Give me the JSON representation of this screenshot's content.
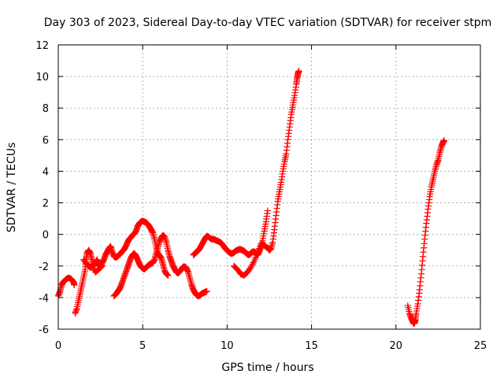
{
  "chart_data": {
    "type": "scatter",
    "title": "Day 303 of 2023, Sidereal Day-to-day VTEC variation (SDTVAR) for receiver stpm",
    "xlabel": "GPS time / hours",
    "ylabel": "SDTVAR / TECUs",
    "xlim": [
      0,
      25
    ],
    "ylim": [
      -6,
      12
    ],
    "xticks": [
      0,
      5,
      10,
      15,
      20,
      25
    ],
    "yticks": [
      -6,
      -4,
      -2,
      0,
      2,
      4,
      6,
      8,
      10,
      12
    ],
    "xtick_labels": [
      "0",
      "5",
      "10",
      "15",
      "20",
      "25"
    ],
    "ytick_labels": [
      "-6",
      "-4",
      "-2",
      "0",
      "2",
      "4",
      "6",
      "8",
      "10",
      "12"
    ],
    "grid": true,
    "marker": "plus",
    "color": "#ff0000",
    "series": [
      {
        "name": "SDTVAR",
        "segments": [
          [
            [
              0.0,
              -3.9
            ],
            [
              0.1,
              -3.6
            ],
            [
              0.2,
              -3.2
            ],
            [
              0.3,
              -3.0
            ],
            [
              0.45,
              -2.85
            ],
            [
              0.6,
              -2.75
            ],
            [
              0.75,
              -2.8
            ],
            [
              0.9,
              -3.0
            ],
            [
              0.95,
              -3.2
            ]
          ],
          [
            [
              1.0,
              -5.0
            ],
            [
              1.1,
              -4.7
            ],
            [
              1.2,
              -4.2
            ],
            [
              1.3,
              -3.7
            ],
            [
              1.4,
              -3.2
            ],
            [
              1.5,
              -2.7
            ],
            [
              1.6,
              -2.2
            ],
            [
              1.65,
              -1.6
            ],
            [
              1.7,
              -1.2
            ],
            [
              1.8,
              -1.0
            ],
            [
              1.9,
              -1.2
            ],
            [
              2.0,
              -1.6
            ],
            [
              2.1,
              -2.0
            ],
            [
              2.2,
              -1.8
            ],
            [
              2.3,
              -1.6
            ],
            [
              2.4,
              -1.9
            ],
            [
              2.5,
              -2.1
            ],
            [
              2.6,
              -1.8
            ],
            [
              2.7,
              -1.6
            ],
            [
              2.8,
              -1.3
            ],
            [
              2.9,
              -1.1
            ],
            [
              3.0,
              -0.9
            ],
            [
              3.1,
              -0.75
            ],
            [
              3.2,
              -1.1
            ],
            [
              3.3,
              -1.4
            ],
            [
              3.4,
              -1.45
            ],
            [
              3.5,
              -1.4
            ],
            [
              3.6,
              -1.3
            ],
            [
              3.7,
              -1.2
            ],
            [
              3.8,
              -1.05
            ],
            [
              3.9,
              -0.95
            ],
            [
              4.0,
              -0.75
            ],
            [
              4.1,
              -0.5
            ],
            [
              4.2,
              -0.3
            ],
            [
              4.3,
              -0.2
            ],
            [
              4.4,
              -0.05
            ],
            [
              4.5,
              0.05
            ],
            [
              4.6,
              0.2
            ],
            [
              4.7,
              0.5
            ],
            [
              4.8,
              0.7
            ],
            [
              4.9,
              0.8
            ],
            [
              5.0,
              0.85
            ],
            [
              5.1,
              0.8
            ],
            [
              5.2,
              0.75
            ],
            [
              5.3,
              0.65
            ],
            [
              5.4,
              0.5
            ],
            [
              5.5,
              0.3
            ],
            [
              5.6,
              0.1
            ],
            [
              5.7,
              -0.3
            ],
            [
              5.8,
              -0.8
            ],
            [
              5.9,
              -1.2
            ],
            [
              6.0,
              -1.35
            ],
            [
              6.1,
              -1.5
            ],
            [
              6.2,
              -1.9
            ],
            [
              6.3,
              -2.3
            ],
            [
              6.4,
              -2.5
            ],
            [
              6.5,
              -2.6
            ]
          ],
          [
            [
              1.5,
              -1.6
            ],
            [
              1.7,
              -1.9
            ],
            [
              1.9,
              -2.1
            ],
            [
              2.0,
              -2.0
            ],
            [
              2.2,
              -2.4
            ],
            [
              2.4,
              -2.2
            ],
            [
              2.6,
              -2.0
            ]
          ],
          [
            [
              3.3,
              -3.9
            ],
            [
              3.4,
              -3.8
            ],
            [
              3.5,
              -3.65
            ],
            [
              3.6,
              -3.5
            ],
            [
              3.7,
              -3.3
            ],
            [
              3.8,
              -3.0
            ],
            [
              3.9,
              -2.7
            ],
            [
              4.0,
              -2.4
            ],
            [
              4.1,
              -2.1
            ],
            [
              4.2,
              -1.8
            ],
            [
              4.3,
              -1.5
            ],
            [
              4.4,
              -1.3
            ],
            [
              4.5,
              -1.2
            ],
            [
              4.6,
              -1.35
            ],
            [
              4.7,
              -1.6
            ],
            [
              4.8,
              -1.85
            ],
            [
              4.9,
              -2.05
            ],
            [
              5.0,
              -2.15
            ],
            [
              5.1,
              -2.2
            ],
            [
              5.2,
              -2.1
            ],
            [
              5.3,
              -2.0
            ],
            [
              5.4,
              -1.9
            ],
            [
              5.5,
              -1.85
            ],
            [
              5.6,
              -1.8
            ],
            [
              5.7,
              -1.6
            ],
            [
              5.8,
              -1.2
            ],
            [
              5.9,
              -0.8
            ],
            [
              6.0,
              -0.45
            ],
            [
              6.1,
              -0.2
            ],
            [
              6.2,
              -0.05
            ],
            [
              6.3,
              -0.15
            ],
            [
              6.4,
              -0.5
            ],
            [
              6.5,
              -1.0
            ],
            [
              6.6,
              -1.4
            ],
            [
              6.7,
              -1.7
            ],
            [
              6.8,
              -2.0
            ],
            [
              6.9,
              -2.2
            ],
            [
              7.0,
              -2.4
            ],
            [
              7.1,
              -2.45
            ],
            [
              7.2,
              -2.35
            ],
            [
              7.3,
              -2.2
            ],
            [
              7.4,
              -2.05
            ],
            [
              7.5,
              -2.05
            ],
            [
              7.6,
              -2.15
            ],
            [
              7.7,
              -2.4
            ],
            [
              7.8,
              -2.8
            ],
            [
              7.9,
              -3.2
            ],
            [
              8.0,
              -3.5
            ],
            [
              8.1,
              -3.7
            ],
            [
              8.2,
              -3.85
            ],
            [
              8.3,
              -3.9
            ],
            [
              8.4,
              -3.85
            ],
            [
              8.5,
              -3.75
            ],
            [
              8.6,
              -3.7
            ],
            [
              8.7,
              -3.65
            ],
            [
              8.8,
              -3.6
            ]
          ],
          [
            [
              8.0,
              -1.3
            ],
            [
              8.1,
              -1.2
            ],
            [
              8.2,
              -1.1
            ],
            [
              8.3,
              -1.0
            ],
            [
              8.4,
              -0.85
            ],
            [
              8.5,
              -0.65
            ],
            [
              8.6,
              -0.45
            ],
            [
              8.7,
              -0.25
            ],
            [
              8.8,
              -0.1
            ],
            [
              8.9,
              -0.15
            ],
            [
              9.0,
              -0.25
            ],
            [
              9.1,
              -0.3
            ],
            [
              9.2,
              -0.3
            ],
            [
              9.3,
              -0.35
            ],
            [
              9.4,
              -0.4
            ],
            [
              9.5,
              -0.45
            ],
            [
              9.6,
              -0.5
            ],
            [
              9.7,
              -0.6
            ],
            [
              9.8,
              -0.75
            ],
            [
              9.9,
              -0.9
            ],
            [
              10.0,
              -1.0
            ],
            [
              10.1,
              -1.1
            ],
            [
              10.2,
              -1.2
            ],
            [
              10.3,
              -1.2
            ],
            [
              10.4,
              -1.15
            ],
            [
              10.5,
              -1.05
            ],
            [
              10.6,
              -1.0
            ],
            [
              10.7,
              -0.95
            ],
            [
              10.8,
              -0.95
            ],
            [
              10.9,
              -1.0
            ],
            [
              11.0,
              -1.05
            ],
            [
              11.1,
              -1.15
            ],
            [
              11.2,
              -1.25
            ],
            [
              11.3,
              -1.3
            ],
            [
              11.4,
              -1.2
            ],
            [
              11.5,
              -1.1
            ],
            [
              11.6,
              -1.1
            ],
            [
              11.7,
              -1.15
            ],
            [
              11.8,
              -1.3
            ],
            [
              11.9,
              -1.1
            ],
            [
              12.0,
              -0.8
            ],
            [
              12.1,
              -0.4
            ],
            [
              12.2,
              0.2
            ],
            [
              12.3,
              0.8
            ],
            [
              12.4,
              1.5
            ]
          ],
          [
            [
              10.4,
              -2.0
            ],
            [
              10.6,
              -2.2
            ],
            [
              10.8,
              -2.5
            ],
            [
              11.0,
              -2.6
            ],
            [
              11.2,
              -2.4
            ],
            [
              11.4,
              -2.1
            ],
            [
              11.6,
              -1.7
            ],
            [
              11.8,
              -1.2
            ],
            [
              12.0,
              -0.6
            ],
            [
              12.2,
              -0.7
            ],
            [
              12.4,
              -0.85
            ],
            [
              12.5,
              -1.0
            ],
            [
              12.6,
              -0.9
            ],
            [
              12.7,
              -0.5
            ],
            [
              12.8,
              0.3
            ],
            [
              12.9,
              1.2
            ],
            [
              13.0,
              2.1
            ],
            [
              13.1,
              2.7
            ],
            [
              13.2,
              3.3
            ],
            [
              13.3,
              4.0
            ],
            [
              13.4,
              4.6
            ],
            [
              13.5,
              5.1
            ],
            [
              13.6,
              6.0
            ],
            [
              13.7,
              6.8
            ],
            [
              13.8,
              7.6
            ],
            [
              13.9,
              8.2
            ],
            [
              14.0,
              8.8
            ],
            [
              14.1,
              9.5
            ],
            [
              14.15,
              9.9
            ],
            [
              14.2,
              10.2
            ],
            [
              14.25,
              10.35
            ]
          ],
          [
            [
              20.7,
              -4.5
            ],
            [
              20.8,
              -5.0
            ],
            [
              20.9,
              -5.3
            ],
            [
              21.0,
              -5.5
            ],
            [
              21.05,
              -5.65
            ],
            [
              21.1,
              -5.6
            ],
            [
              21.15,
              -5.4
            ],
            [
              21.2,
              -5.0
            ],
            [
              21.3,
              -4.4
            ],
            [
              21.4,
              -3.5
            ],
            [
              21.5,
              -2.5
            ],
            [
              21.6,
              -1.4
            ],
            [
              21.7,
              -0.3
            ],
            [
              21.8,
              0.7
            ],
            [
              21.9,
              1.6
            ],
            [
              22.0,
              2.4
            ],
            [
              22.1,
              3.0
            ],
            [
              22.2,
              3.5
            ],
            [
              22.3,
              4.0
            ],
            [
              22.4,
              4.4
            ],
            [
              22.5,
              4.7
            ],
            [
              22.6,
              5.2
            ],
            [
              22.7,
              5.6
            ],
            [
              22.8,
              5.85
            ],
            [
              22.85,
              5.95
            ]
          ]
        ]
      }
    ]
  }
}
